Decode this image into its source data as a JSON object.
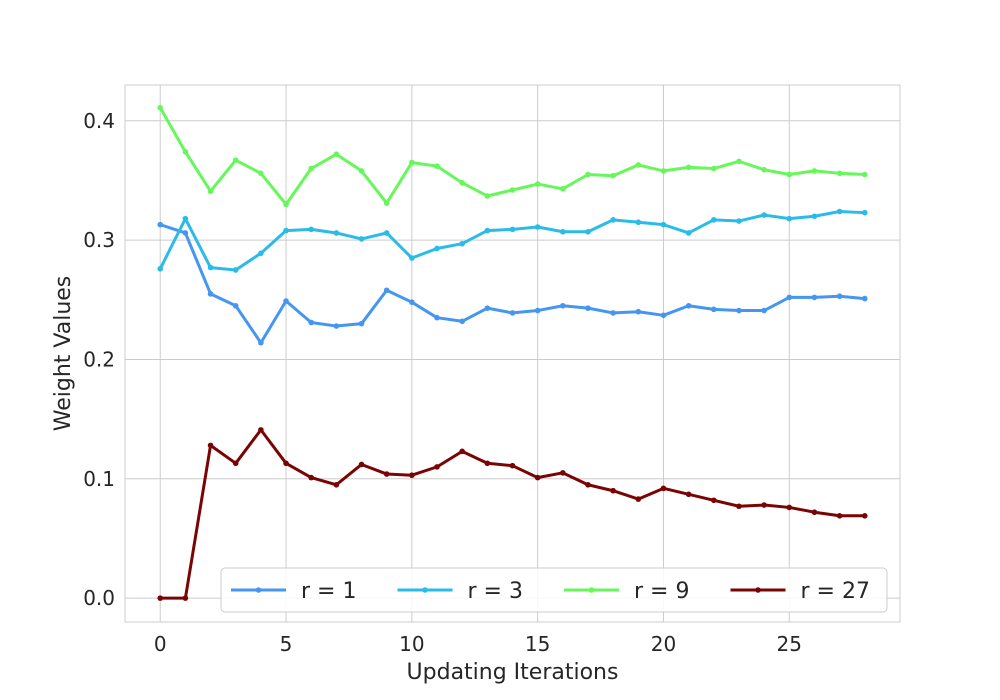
{
  "chart_data": {
    "type": "line",
    "title": "",
    "xlabel": "Updating Iterations",
    "ylabel": "Weight Values",
    "xlim": [
      -1.4,
      29.4
    ],
    "ylim": [
      -0.02,
      0.43
    ],
    "xticks": [
      0,
      5,
      10,
      15,
      20,
      25
    ],
    "yticks": [
      0.0,
      0.1,
      0.2,
      0.3,
      0.4
    ],
    "xtick_labels": [
      "0",
      "5",
      "10",
      "15",
      "20",
      "25"
    ],
    "ytick_labels": [
      "0.0",
      "0.1",
      "0.2",
      "0.3",
      "0.4"
    ],
    "grid": true,
    "legend": {
      "placement": "lower-center",
      "columns": 4
    },
    "x": [
      0,
      1,
      2,
      3,
      4,
      5,
      6,
      7,
      8,
      9,
      10,
      11,
      12,
      13,
      14,
      15,
      16,
      17,
      18,
      19,
      20,
      21,
      22,
      23,
      24,
      25,
      26,
      27,
      28
    ],
    "series": [
      {
        "name": "r = 1",
        "color": "#4496f0",
        "values": [
          0.313,
          0.306,
          0.255,
          0.245,
          0.214,
          0.249,
          0.231,
          0.228,
          0.23,
          0.258,
          0.248,
          0.235,
          0.232,
          0.243,
          0.239,
          0.241,
          0.245,
          0.243,
          0.239,
          0.24,
          0.237,
          0.245,
          0.242,
          0.241,
          0.241,
          0.252,
          0.252,
          0.253,
          0.251
        ]
      },
      {
        "name": "r = 3",
        "color": "#2bbbe8",
        "values": [
          0.276,
          0.318,
          0.277,
          0.275,
          0.289,
          0.308,
          0.309,
          0.306,
          0.301,
          0.306,
          0.285,
          0.293,
          0.297,
          0.308,
          0.309,
          0.311,
          0.307,
          0.307,
          0.317,
          0.315,
          0.313,
          0.306,
          0.317,
          0.316,
          0.321,
          0.318,
          0.32,
          0.324,
          0.323
        ]
      },
      {
        "name": "r = 9",
        "color": "#66f85a",
        "values": [
          0.411,
          0.374,
          0.341,
          0.367,
          0.356,
          0.33,
          0.36,
          0.372,
          0.358,
          0.331,
          0.365,
          0.362,
          0.348,
          0.337,
          0.342,
          0.347,
          0.343,
          0.355,
          0.354,
          0.363,
          0.358,
          0.361,
          0.36,
          0.366,
          0.359,
          0.355,
          0.358,
          0.356,
          0.355
        ]
      },
      {
        "name": "r = 27",
        "color": "#7a0403",
        "values": [
          0.0,
          0.0,
          0.128,
          0.113,
          0.141,
          0.113,
          0.101,
          0.095,
          0.112,
          0.104,
          0.103,
          0.11,
          0.123,
          0.113,
          0.111,
          0.101,
          0.105,
          0.095,
          0.09,
          0.083,
          0.092,
          0.087,
          0.082,
          0.077,
          0.078,
          0.076,
          0.072,
          0.069,
          0.069
        ]
      }
    ]
  }
}
